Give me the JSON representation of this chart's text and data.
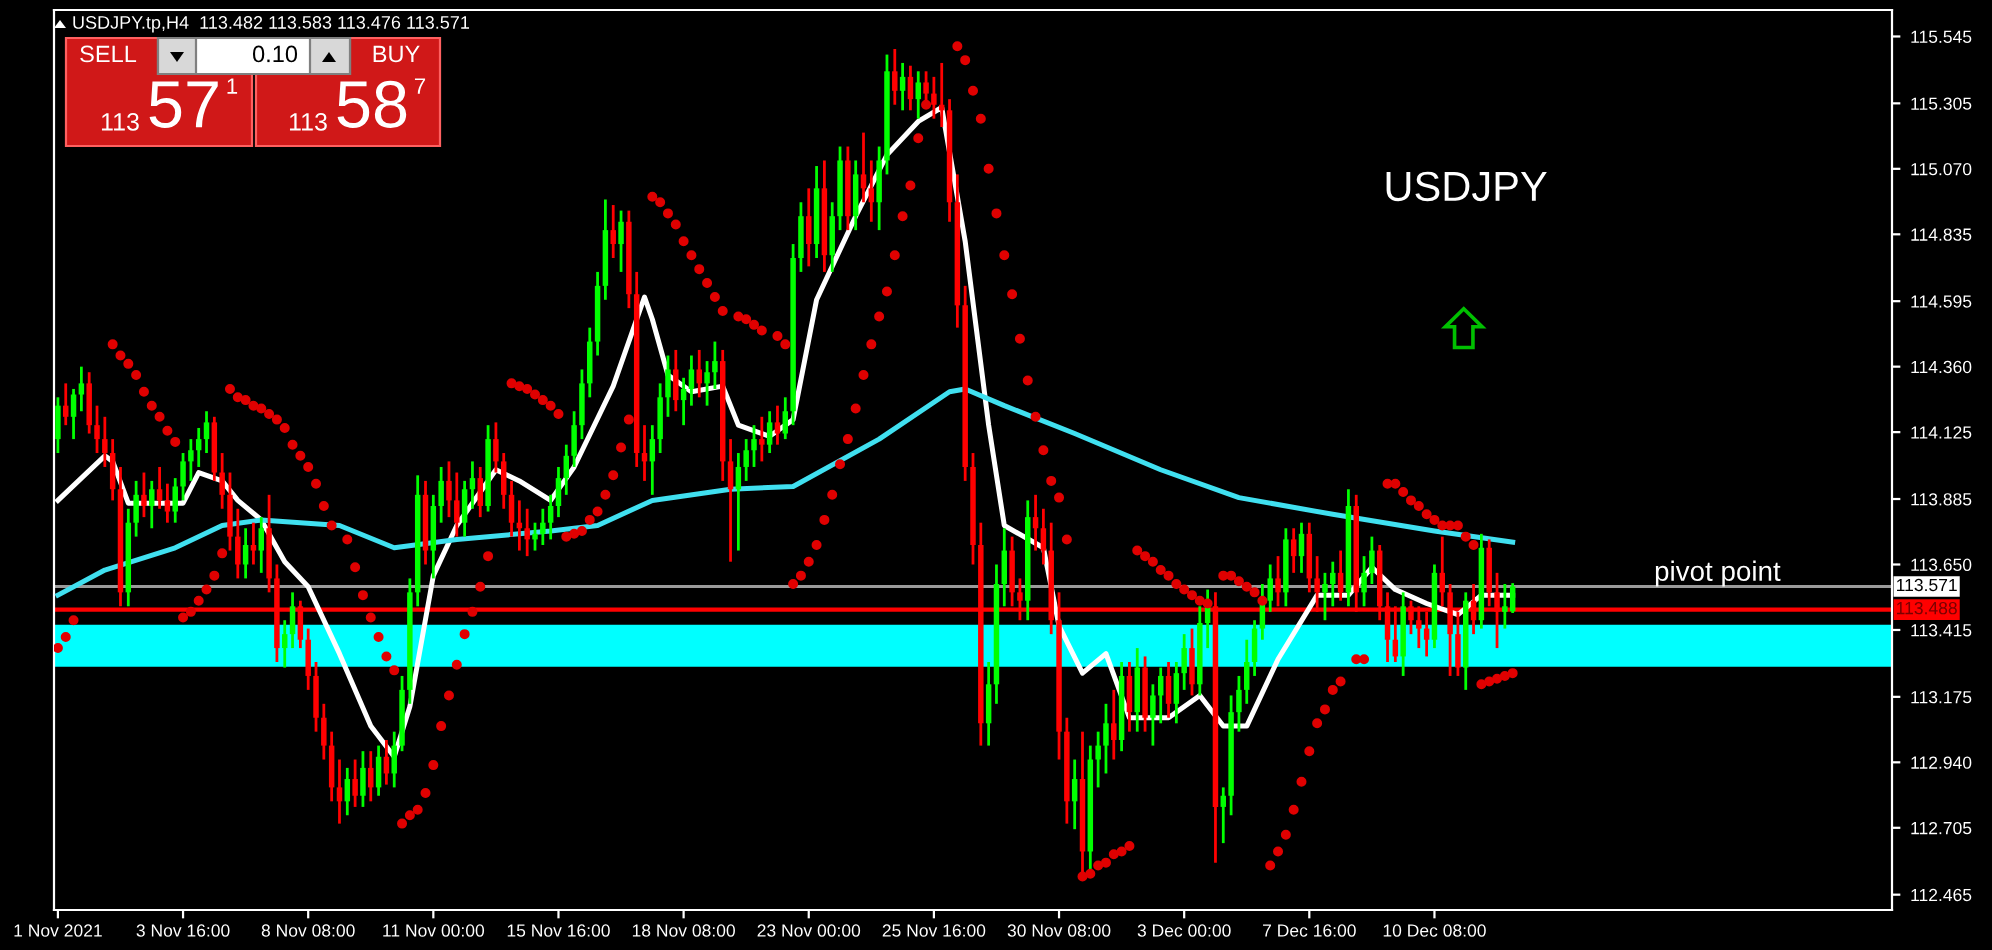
{
  "chart_data": {
    "type": "candlestick",
    "title": "USDJPY.tp,H4  113.482 113.583 113.476 113.571",
    "categories": [
      "1 Nov 2021",
      null,
      null,
      null,
      null,
      null,
      null,
      null,
      null,
      null,
      null,
      null,
      null,
      null,
      null,
      null,
      "3 Nov 16:00",
      null,
      null,
      null,
      null,
      null,
      null,
      null,
      null,
      null,
      null,
      null,
      null,
      null,
      null,
      null,
      "8 Nov 08:00",
      null,
      null,
      null,
      null,
      null,
      null,
      null,
      null,
      null,
      null,
      null,
      null,
      null,
      null,
      null,
      "11 Nov 00:00",
      null,
      null,
      null,
      null,
      null,
      null,
      null,
      null,
      null,
      null,
      null,
      null,
      null,
      null,
      null,
      "15 Nov 16:00",
      null,
      null,
      null,
      null,
      null,
      null,
      null,
      null,
      null,
      null,
      null,
      null,
      null,
      null,
      null,
      "18 Nov 08:00",
      null,
      null,
      null,
      null,
      null,
      null,
      null,
      null,
      null,
      null,
      null,
      null,
      null,
      null,
      null,
      "23 Nov 00:00",
      null,
      null,
      null,
      null,
      null,
      null,
      null,
      null,
      null,
      null,
      null,
      null,
      null,
      null,
      null,
      "25 Nov 16:00",
      null,
      null,
      null,
      null,
      null,
      null,
      null,
      null,
      null,
      null,
      null,
      null,
      null,
      null,
      null,
      "30 Nov 08:00",
      null,
      null,
      null,
      null,
      null,
      null,
      null,
      null,
      null,
      null,
      null,
      null,
      null,
      null,
      null,
      "3 Dec 00:00",
      null,
      null,
      null,
      null,
      null,
      null,
      null,
      null,
      null,
      null,
      null,
      null,
      null,
      null,
      null,
      "7 Dec 16:00",
      null,
      null,
      null,
      null,
      null,
      null,
      null,
      null,
      null,
      null,
      null,
      null,
      null,
      null,
      null,
      "10 Dec 08:00",
      null,
      null,
      null,
      null,
      null,
      null,
      null,
      null,
      null,
      null,
      null,
      null,
      null,
      null,
      null,
      null,
      null,
      null,
      null,
      null,
      null,
      null,
      null,
      null,
      null,
      null,
      null,
      null,
      null,
      null,
      null,
      null,
      null,
      null,
      null,
      null,
      null,
      null,
      null,
      null,
      null,
      null,
      null,
      null,
      null,
      null,
      null,
      null,
      null,
      null,
      null,
      null,
      null,
      null,
      null,
      null,
      null,
      null
    ],
    "ohlc": [
      [
        114.1,
        114.25,
        114.05,
        114.22
      ],
      [
        114.22,
        114.3,
        114.15,
        114.18
      ],
      [
        114.18,
        114.28,
        114.1,
        114.26
      ],
      [
        114.26,
        114.36,
        114.2,
        114.3
      ],
      [
        114.3,
        114.34,
        114.12,
        114.15
      ],
      [
        114.15,
        114.22,
        114.05,
        114.1
      ],
      [
        114.1,
        114.18,
        114.0,
        114.05
      ],
      [
        114.05,
        114.1,
        113.88,
        113.92
      ],
      [
        113.92,
        114.0,
        113.5,
        113.55
      ],
      [
        113.55,
        113.85,
        113.5,
        113.8
      ],
      [
        113.8,
        113.95,
        113.75,
        113.9
      ],
      [
        113.9,
        113.98,
        113.82,
        113.86
      ],
      [
        113.86,
        113.95,
        113.78,
        113.92
      ],
      [
        113.92,
        114.0,
        113.85,
        113.88
      ],
      [
        113.88,
        113.94,
        113.8,
        113.84
      ],
      [
        113.84,
        113.96,
        113.8,
        113.93
      ],
      [
        113.93,
        114.05,
        113.88,
        114.02
      ],
      [
        114.02,
        114.1,
        113.95,
        114.06
      ],
      [
        114.06,
        114.14,
        114.0,
        114.1
      ],
      [
        114.1,
        114.2,
        114.05,
        114.16
      ],
      [
        114.16,
        114.18,
        113.95,
        113.98
      ],
      [
        113.98,
        114.05,
        113.85,
        113.9
      ],
      [
        113.9,
        113.98,
        113.7,
        113.75
      ],
      [
        113.75,
        113.85,
        113.6,
        113.65
      ],
      [
        113.65,
        113.78,
        113.6,
        113.72
      ],
      [
        113.72,
        113.8,
        113.65,
        113.7
      ],
      [
        113.7,
        113.82,
        113.62,
        113.78
      ],
      [
        113.78,
        113.9,
        113.55,
        113.6
      ],
      [
        113.6,
        113.65,
        113.3,
        113.35
      ],
      [
        113.35,
        113.45,
        113.28,
        113.4
      ],
      [
        113.4,
        113.55,
        113.35,
        113.5
      ],
      [
        113.5,
        113.52,
        113.35,
        113.38
      ],
      [
        113.38,
        113.42,
        113.2,
        113.25
      ],
      [
        113.25,
        113.3,
        113.05,
        113.1
      ],
      [
        113.1,
        113.15,
        112.95,
        113.0
      ],
      [
        113.0,
        113.05,
        112.8,
        112.85
      ],
      [
        112.85,
        112.95,
        112.72,
        112.8
      ],
      [
        112.8,
        112.92,
        112.75,
        112.88
      ],
      [
        112.88,
        112.95,
        112.78,
        112.82
      ],
      [
        112.82,
        112.98,
        112.78,
        112.92
      ],
      [
        112.92,
        112.98,
        112.8,
        112.85
      ],
      [
        112.85,
        113.0,
        112.82,
        112.96
      ],
      [
        112.96,
        113.02,
        112.86,
        112.9
      ],
      [
        112.9,
        113.05,
        112.85,
        113.0
      ],
      [
        113.0,
        113.25,
        112.98,
        113.2
      ],
      [
        113.2,
        113.6,
        113.15,
        113.55
      ],
      [
        113.55,
        113.97,
        113.5,
        113.9
      ],
      [
        113.9,
        113.95,
        113.65,
        113.7
      ],
      [
        113.7,
        113.9,
        113.6,
        113.86
      ],
      [
        113.86,
        114.0,
        113.8,
        113.95
      ],
      [
        113.95,
        114.02,
        113.82,
        113.88
      ],
      [
        113.88,
        113.98,
        113.75,
        113.8
      ],
      [
        113.8,
        113.95,
        113.75,
        113.92
      ],
      [
        113.92,
        114.02,
        113.85,
        113.96
      ],
      [
        113.96,
        114.0,
        113.82,
        113.86
      ],
      [
        113.86,
        114.15,
        113.84,
        114.1
      ],
      [
        114.1,
        114.16,
        113.98,
        114.02
      ],
      [
        114.02,
        114.05,
        113.85,
        113.9
      ],
      [
        113.9,
        113.95,
        113.75,
        113.8
      ],
      [
        113.8,
        113.88,
        113.7,
        113.78
      ],
      [
        113.78,
        113.85,
        113.68,
        113.74
      ],
      [
        113.74,
        113.8,
        113.7,
        113.76
      ],
      [
        113.76,
        113.85,
        113.72,
        113.8
      ],
      [
        113.8,
        113.9,
        113.74,
        113.86
      ],
      [
        113.86,
        114.0,
        113.82,
        113.96
      ],
      [
        113.96,
        114.08,
        113.9,
        114.04
      ],
      [
        114.04,
        114.2,
        114.0,
        114.15
      ],
      [
        114.15,
        114.35,
        114.1,
        114.3
      ],
      [
        114.3,
        114.5,
        114.25,
        114.45
      ],
      [
        114.45,
        114.7,
        114.4,
        114.65
      ],
      [
        114.65,
        114.96,
        114.6,
        114.85
      ],
      [
        114.85,
        114.94,
        114.75,
        114.8
      ],
      [
        114.8,
        114.92,
        114.7,
        114.88
      ],
      [
        114.88,
        114.92,
        114.57,
        114.62
      ],
      [
        114.62,
        114.7,
        114.0,
        114.05
      ],
      [
        114.05,
        114.15,
        113.95,
        114.02
      ],
      [
        114.02,
        114.15,
        113.9,
        114.1
      ],
      [
        114.1,
        114.3,
        114.05,
        114.25
      ],
      [
        114.25,
        114.4,
        114.18,
        114.35
      ],
      [
        114.35,
        114.42,
        114.2,
        114.24
      ],
      [
        114.24,
        114.32,
        114.15,
        114.28
      ],
      [
        114.28,
        114.4,
        114.22,
        114.35
      ],
      [
        114.35,
        114.42,
        114.25,
        114.3
      ],
      [
        114.3,
        114.38,
        114.22,
        114.34
      ],
      [
        114.34,
        114.45,
        114.28,
        114.38
      ],
      [
        114.38,
        114.42,
        113.95,
        114.02
      ],
      [
        114.02,
        114.1,
        113.66,
        113.92
      ],
      [
        113.92,
        114.05,
        113.7,
        114.0
      ],
      [
        114.0,
        114.1,
        113.95,
        114.06
      ],
      [
        114.06,
        114.15,
        114.0,
        114.1
      ],
      [
        114.1,
        114.18,
        114.02,
        114.08
      ],
      [
        114.08,
        114.2,
        114.05,
        114.16
      ],
      [
        114.16,
        114.22,
        114.08,
        114.12
      ],
      [
        114.12,
        114.25,
        114.1,
        114.2
      ],
      [
        114.2,
        114.8,
        114.15,
        114.75
      ],
      [
        114.75,
        114.95,
        114.7,
        114.9
      ],
      [
        114.9,
        115.0,
        114.72,
        114.8
      ],
      [
        114.8,
        115.08,
        114.75,
        115.0
      ],
      [
        115.0,
        115.1,
        114.7,
        114.76
      ],
      [
        114.76,
        114.95,
        114.7,
        114.9
      ],
      [
        114.9,
        115.15,
        114.85,
        115.1
      ],
      [
        115.1,
        115.15,
        114.85,
        114.9
      ],
      [
        114.9,
        115.1,
        114.85,
        115.05
      ],
      [
        115.05,
        115.2,
        114.95,
        115.0
      ],
      [
        115.0,
        115.1,
        114.88,
        114.95
      ],
      [
        114.95,
        115.15,
        114.85,
        115.1
      ],
      [
        115.1,
        115.48,
        115.05,
        115.42
      ],
      [
        115.42,
        115.5,
        115.3,
        115.35
      ],
      [
        115.35,
        115.45,
        115.28,
        115.4
      ],
      [
        115.4,
        115.44,
        115.28,
        115.32
      ],
      [
        115.32,
        115.42,
        115.25,
        115.38
      ],
      [
        115.38,
        115.42,
        115.3,
        115.34
      ],
      [
        115.34,
        115.4,
        115.25,
        115.3
      ],
      [
        115.3,
        115.45,
        115.22,
        115.28
      ],
      [
        115.28,
        115.32,
        114.88,
        114.95
      ],
      [
        114.95,
        115.05,
        114.5,
        114.58
      ],
      [
        114.58,
        114.65,
        113.95,
        114.0
      ],
      [
        114.0,
        114.05,
        113.65,
        113.72
      ],
      [
        113.72,
        113.8,
        113.0,
        113.08
      ],
      [
        113.08,
        113.3,
        113.0,
        113.22
      ],
      [
        113.22,
        113.65,
        113.15,
        113.58
      ],
      [
        113.58,
        113.78,
        113.5,
        113.7
      ],
      [
        113.7,
        113.75,
        113.5,
        113.55
      ],
      [
        113.55,
        113.6,
        113.45,
        113.52
      ],
      [
        113.52,
        113.88,
        113.45,
        113.82
      ],
      [
        113.82,
        113.9,
        113.7,
        113.78
      ],
      [
        113.78,
        113.85,
        113.65,
        113.7
      ],
      [
        113.7,
        113.8,
        113.4,
        113.45
      ],
      [
        113.45,
        113.55,
        112.95,
        113.05
      ],
      [
        113.05,
        113.1,
        112.72,
        112.8
      ],
      [
        112.8,
        112.95,
        112.7,
        112.88
      ],
      [
        112.88,
        113.05,
        112.54,
        112.62
      ],
      [
        112.62,
        113.0,
        112.55,
        112.95
      ],
      [
        112.95,
        113.05,
        112.85,
        113.0
      ],
      [
        113.0,
        113.15,
        112.9,
        113.08
      ],
      [
        113.08,
        113.2,
        112.95,
        113.02
      ],
      [
        113.02,
        113.3,
        112.98,
        113.25
      ],
      [
        113.25,
        113.3,
        113.05,
        113.12
      ],
      [
        113.12,
        113.35,
        113.05,
        113.28
      ],
      [
        113.28,
        113.32,
        113.05,
        113.1
      ],
      [
        113.1,
        113.22,
        113.0,
        113.18
      ],
      [
        113.18,
        113.28,
        113.08,
        113.25
      ],
      [
        113.25,
        113.3,
        113.1,
        113.15
      ],
      [
        113.15,
        113.3,
        113.08,
        113.26
      ],
      [
        113.26,
        113.4,
        113.2,
        113.35
      ],
      [
        113.35,
        113.42,
        113.18,
        113.22
      ],
      [
        113.22,
        113.5,
        113.18,
        113.44
      ],
      [
        113.44,
        113.56,
        113.35,
        113.5
      ],
      [
        113.5,
        113.55,
        112.58,
        112.78
      ],
      [
        112.78,
        112.85,
        112.65,
        112.82
      ],
      [
        112.82,
        113.18,
        112.75,
        113.12
      ],
      [
        113.12,
        113.25,
        113.05,
        113.2
      ],
      [
        113.2,
        113.38,
        113.15,
        113.3
      ],
      [
        113.3,
        113.45,
        113.25,
        113.42
      ],
      [
        113.42,
        113.58,
        113.38,
        113.52
      ],
      [
        113.52,
        113.65,
        113.48,
        113.6
      ],
      [
        113.6,
        113.68,
        113.5,
        113.55
      ],
      [
        113.55,
        113.78,
        113.5,
        113.74
      ],
      [
        113.74,
        113.78,
        113.62,
        113.68
      ],
      [
        113.68,
        113.8,
        113.62,
        113.76
      ],
      [
        113.76,
        113.8,
        113.55,
        113.6
      ],
      [
        113.6,
        113.68,
        113.48,
        113.55
      ],
      [
        113.55,
        113.62,
        113.45,
        113.58
      ],
      [
        113.58,
        113.66,
        113.5,
        113.62
      ],
      [
        113.62,
        113.7,
        113.52,
        113.55
      ],
      [
        113.55,
        113.92,
        113.5,
        113.86
      ],
      [
        113.86,
        113.9,
        113.48,
        113.55
      ],
      [
        113.55,
        113.68,
        113.5,
        113.62
      ],
      [
        113.62,
        113.75,
        113.58,
        113.7
      ],
      [
        113.7,
        113.72,
        113.45,
        113.5
      ],
      [
        113.5,
        113.55,
        113.3,
        113.38
      ],
      [
        113.38,
        113.5,
        113.3,
        113.32
      ],
      [
        113.32,
        113.55,
        113.25,
        113.5
      ],
      [
        113.5,
        113.52,
        113.4,
        113.45
      ],
      [
        113.45,
        113.5,
        113.35,
        113.42
      ],
      [
        113.42,
        113.48,
        113.32,
        113.38
      ],
      [
        113.38,
        113.65,
        113.35,
        113.62
      ],
      [
        113.62,
        113.75,
        113.5,
        113.55
      ],
      [
        113.55,
        113.58,
        113.25,
        113.4
      ],
      [
        113.4,
        113.48,
        113.25,
        113.28
      ],
      [
        113.28,
        113.55,
        113.2,
        113.52
      ],
      [
        113.52,
        113.58,
        113.4,
        113.45
      ],
      [
        113.45,
        113.76,
        113.42,
        113.71
      ],
      [
        113.71,
        113.74,
        113.5,
        113.55
      ],
      [
        113.55,
        113.62,
        113.35,
        113.48
      ],
      [
        113.48,
        113.58,
        113.42,
        113.5
      ],
      [
        113.482,
        113.583,
        113.476,
        113.571
      ],
      null,
      null,
      null,
      null,
      null,
      null,
      null,
      null,
      null,
      null,
      null,
      null,
      null,
      null,
      null,
      null,
      null,
      null,
      null,
      null,
      null,
      null,
      null,
      null,
      null,
      null,
      null,
      null,
      null,
      null,
      null,
      null,
      null,
      null,
      null,
      null,
      null,
      null,
      null,
      null,
      null,
      null,
      null,
      null,
      null,
      null,
      null,
      null
    ],
    "colors": [
      "#00ff00",
      "#ff0000",
      "#00ff00",
      "#00ff00",
      "#ff0000",
      "#ff0000",
      "#ff0000",
      "#ff0000",
      "#ff0000",
      "#00ff00",
      "#00ff00",
      "#ff0000",
      "#00ff00",
      "#ff0000",
      "#ff0000",
      "#00ff00",
      "#00ff00",
      "#00ff00",
      "#00ff00",
      "#00ff00",
      "#ff0000",
      "#ff0000",
      "#ff0000",
      "#ff0000",
      "#00ff00",
      "#ff0000",
      "#00ff00",
      "#ff0000",
      "#ff0000",
      "#00ff00",
      "#00ff00",
      "#ff0000",
      "#ff0000",
      "#ff0000",
      "#ff0000",
      "#ff0000",
      "#ff0000",
      "#00ff00",
      "#ff0000",
      "#00ff00",
      "#ff0000",
      "#00ff00",
      "#ff0000",
      "#00ff00",
      "#00ff00",
      "#00ff00",
      "#00ff00",
      "#ff0000",
      "#00ff00",
      "#00ff00",
      "#ff0000",
      "#ff0000",
      "#00ff00",
      "#00ff00",
      "#ff0000",
      "#00ff00",
      "#ff0000",
      "#ff0000",
      "#ff0000",
      "#ff0000",
      "#ff0000",
      "#00ff00",
      "#00ff00",
      "#00ff00",
      "#00ff00",
      "#00ff00",
      "#00ff00",
      "#00ff00",
      "#00ff00",
      "#00ff00",
      "#00ff00",
      "#ff0000",
      "#00ff00",
      "#ff0000",
      "#ff0000",
      "#ff0000",
      "#00ff00",
      "#00ff00",
      "#00ff00",
      "#ff0000",
      "#00ff00",
      "#00ff00",
      "#ff0000",
      "#00ff00",
      "#00ff00",
      "#ff0000",
      "#ff0000",
      "#00ff00",
      "#00ff00",
      "#00ff00",
      "#ff0000",
      "#00ff00",
      "#ff0000",
      "#00ff00",
      "#00ff00",
      "#00ff00",
      "#ff0000",
      "#00ff00",
      "#ff0000",
      "#00ff00",
      "#00ff00",
      "#ff0000",
      "#00ff00",
      "#ff0000",
      "#ff0000",
      "#00ff00",
      "#00ff00",
      "#ff0000",
      "#00ff00",
      "#ff0000",
      "#00ff00",
      "#ff0000",
      "#ff0000",
      "#ff0000",
      "#ff0000",
      "#ff0000",
      "#ff0000",
      "#ff0000",
      "#ff0000",
      "#00ff00",
      "#00ff00",
      "#00ff00",
      "#ff0000",
      "#ff0000",
      "#00ff00",
      "#ff0000",
      "#ff0000",
      "#ff0000",
      "#ff0000",
      "#ff0000",
      "#00ff00",
      "#ff0000",
      "#00ff00",
      "#00ff00",
      "#00ff00",
      "#ff0000",
      "#00ff00",
      "#ff0000",
      "#00ff00",
      "#ff0000",
      "#00ff00",
      "#00ff00",
      "#ff0000",
      "#00ff00",
      "#00ff00",
      "#ff0000",
      "#00ff00",
      "#00ff00",
      "#ff0000",
      "#00ff00",
      "#00ff00",
      "#00ff00",
      "#00ff00",
      "#00ff00",
      "#00ff00",
      "#00ff00",
      "#ff0000",
      "#00ff00",
      "#ff0000",
      "#00ff00",
      "#ff0000",
      "#ff0000",
      "#00ff00",
      "#00ff00",
      "#ff0000",
      "#00ff00",
      "#ff0000",
      "#00ff00",
      "#00ff00",
      "#ff0000",
      "#ff0000",
      "#ff0000",
      "#00ff00",
      "#ff0000",
      "#ff0000",
      "#ff0000",
      "#00ff00",
      "#ff0000",
      "#ff0000",
      "#ff0000",
      "#00ff00",
      "#ff0000",
      "#00ff00",
      "#ff0000",
      "#ff0000",
      "#00ff00",
      "#00ff00",
      null,
      null,
      null,
      null,
      null,
      null,
      null,
      null,
      null,
      null,
      null,
      null,
      null,
      null,
      null,
      null,
      null,
      null,
      null,
      null,
      null,
      null,
      null,
      null,
      null,
      null,
      null,
      null,
      null,
      null,
      null,
      null,
      null,
      null,
      null,
      null,
      null,
      null,
      null,
      null,
      null,
      null,
      null,
      null,
      null,
      null,
      null,
      null
    ],
    "series": [
      {
        "type": "line",
        "color": "#ffffff",
        "values": [
          113.88,
          null,
          null,
          null,
          null,
          null,
          114.04,
          114.02,
          null,
          113.87,
          null,
          null,
          null,
          null,
          null,
          null,
          113.87,
          null,
          113.98,
          null,
          null,
          113.95,
          null,
          113.88,
          null,
          null,
          113.81,
          null,
          null,
          113.66,
          null,
          null,
          113.57,
          null,
          null,
          null,
          113.33,
          null,
          null,
          null,
          113.07,
          null,
          null,
          112.96,
          null,
          113.14,
          null,
          null,
          113.61,
          null,
          null,
          113.79,
          null,
          null,
          null,
          null,
          113.99,
          null,
          null,
          113.95,
          null,
          null,
          null,
          113.88,
          null,
          null,
          114.0,
          null,
          null,
          null,
          null,
          114.29,
          null,
          null,
          null,
          114.61,
          114.53,
          null,
          114.33,
          null,
          null,
          114.27,
          null,
          null,
          null,
          114.29,
          null,
          114.15,
          null,
          null,
          null,
          114.11,
          null,
          null,
          114.17,
          null,
          null,
          114.6,
          null,
          null,
          null,
          null,
          114.9,
          null,
          null,
          null,
          115.12,
          null,
          null,
          null,
          115.24,
          null,
          null,
          115.29,
          null,
          null,
          114.81,
          null,
          null,
          114.15,
          null,
          113.79,
          null,
          null,
          null,
          null,
          113.71,
          null,
          113.43,
          null,
          null,
          113.26,
          null,
          null,
          113.33,
          null,
          null,
          113.1,
          null,
          null,
          null,
          null,
          113.1,
          null,
          null,
          null,
          113.18,
          null,
          null,
          113.07,
          null,
          null,
          113.07,
          null,
          null,
          null,
          113.31,
          null,
          null,
          null,
          null,
          113.54,
          null,
          null,
          null,
          113.54,
          null,
          null,
          113.64,
          null,
          null,
          113.56,
          null,
          null,
          null,
          113.51,
          null,
          null,
          null,
          113.47,
          null,
          null,
          113.54,
          null,
          null,
          null,
          113.54,
          null,
          null,
          null,
          null,
          null,
          null,
          null,
          null,
          null,
          null,
          null,
          null,
          null,
          null,
          null,
          null,
          null,
          null,
          null,
          null,
          null,
          null,
          null,
          null,
          null,
          null,
          null,
          null,
          null,
          null,
          null,
          null,
          null,
          null,
          null,
          null,
          null,
          null,
          null,
          null,
          null,
          null,
          null,
          null,
          null,
          null,
          null,
          null
        ]
      },
      {
        "type": "line",
        "color": "#40e0f0",
        "values": [
          113.54,
          null,
          null,
          null,
          null,
          null,
          113.63,
          null,
          null,
          null,
          null,
          null,
          null,
          null,
          null,
          113.71,
          null,
          null,
          null,
          null,
          null,
          113.79,
          null,
          null,
          null,
          null,
          113.81,
          null,
          null,
          null,
          null,
          null,
          null,
          null,
          null,
          null,
          113.79,
          null,
          null,
          null,
          null,
          null,
          null,
          113.71,
          null,
          null,
          null,
          null,
          null,
          null,
          null,
          113.74,
          null,
          null,
          null,
          null,
          null,
          null,
          null,
          null,
          null,
          null,
          null,
          113.77,
          null,
          null,
          null,
          null,
          null,
          113.79,
          null,
          null,
          null,
          null,
          null,
          null,
          113.88,
          null,
          null,
          null,
          null,
          null,
          null,
          null,
          null,
          null,
          113.92,
          null,
          null,
          null,
          null,
          null,
          null,
          null,
          113.93,
          null,
          null,
          null,
          null,
          null,
          null,
          null,
          null,
          null,
          null,
          114.1,
          null,
          null,
          null,
          null,
          null,
          null,
          null,
          null,
          114.27,
          null,
          114.28,
          null,
          null,
          null,
          null,
          114.22,
          null,
          null,
          null,
          null,
          null,
          null,
          null,
          null,
          114.12,
          null,
          null,
          null,
          null,
          null,
          null,
          null,
          null,
          null,
          null,
          113.99,
          null,
          null,
          null,
          null,
          null,
          null,
          null,
          null,
          null,
          113.89,
          null,
          null,
          null,
          null,
          null,
          null,
          null,
          null,
          null,
          null,
          null,
          113.83,
          null,
          null,
          null,
          null,
          null,
          null,
          null,
          null,
          null,
          null,
          null,
          null,
          113.77,
          null,
          null,
          null,
          null,
          null,
          null,
          null,
          null,
          null,
          113.73,
          null,
          null,
          null,
          null,
          null,
          null,
          null,
          null,
          null,
          null,
          null,
          null,
          null,
          null,
          null,
          null,
          null,
          null,
          null,
          null,
          null,
          null,
          null,
          null,
          null,
          null,
          null,
          null,
          null,
          null,
          null,
          null,
          null,
          null,
          null,
          null,
          null,
          null,
          null,
          null,
          null,
          null,
          null,
          null,
          null,
          null,
          null,
          null
        ]
      },
      {
        "type": "scatter",
        "color": "#e00000",
        "marker": "circle",
        "values": [
          113.35,
          113.39,
          113.45,
          null,
          null,
          null,
          null,
          114.44,
          114.4,
          114.37,
          114.33,
          114.27,
          114.22,
          114.18,
          114.13,
          114.09,
          113.46,
          113.48,
          113.52,
          113.56,
          113.61,
          113.69,
          114.28,
          114.25,
          114.24,
          114.22,
          114.21,
          114.19,
          114.17,
          114.14,
          114.08,
          114.04,
          114.0,
          113.94,
          113.86,
          113.79,
          null,
          113.74,
          113.64,
          113.54,
          113.46,
          113.39,
          113.32,
          113.27,
          112.72,
          112.75,
          112.77,
          112.83,
          112.93,
          113.07,
          113.18,
          113.29,
          113.4,
          113.48,
          113.57,
          113.68,
          null,
          null,
          114.3,
          114.29,
          114.28,
          114.26,
          114.24,
          114.22,
          114.19,
          113.75,
          113.76,
          113.77,
          113.81,
          113.84,
          113.9,
          113.97,
          114.07,
          114.17,
          null,
          null,
          114.97,
          114.95,
          114.91,
          114.87,
          114.81,
          114.76,
          114.71,
          114.66,
          114.61,
          114.56,
          null,
          114.54,
          114.53,
          114.51,
          114.49,
          null,
          114.47,
          114.44,
          113.58,
          113.61,
          113.66,
          113.72,
          113.81,
          113.9,
          114.01,
          114.1,
          114.21,
          114.33,
          114.44,
          114.54,
          114.63,
          114.76,
          114.9,
          115.01,
          115.18,
          115.3,
          null,
          null,
          null,
          115.51,
          115.46,
          115.35,
          115.25,
          115.07,
          114.91,
          114.76,
          114.62,
          114.46,
          114.31,
          114.18,
          114.06,
          113.95,
          113.89,
          113.74,
          null,
          112.53,
          112.54,
          112.57,
          112.58,
          112.61,
          112.62,
          112.64,
          113.7,
          113.68,
          113.66,
          113.63,
          113.61,
          113.58,
          113.56,
          113.54,
          113.52,
          113.51,
          null,
          113.61,
          113.61,
          113.59,
          113.57,
          113.55,
          113.52,
          112.57,
          112.62,
          112.68,
          112.77,
          112.87,
          112.98,
          113.08,
          113.13,
          113.2,
          113.23,
          null,
          113.31,
          113.31,
          null,
          null,
          113.94,
          113.94,
          113.91,
          113.88,
          113.86,
          113.83,
          113.81,
          113.79,
          113.79,
          113.79,
          113.75,
          113.72,
          113.22,
          113.23,
          113.24,
          113.25,
          113.26,
          null,
          null,
          null,
          null,
          null,
          null,
          null,
          null,
          null,
          null,
          null,
          null,
          null,
          null,
          null,
          null,
          null,
          null,
          null,
          null,
          null,
          null,
          null,
          null,
          null,
          null,
          null,
          null,
          null,
          null,
          null,
          null,
          null,
          null,
          null,
          null,
          null,
          null,
          null,
          null,
          null,
          null,
          null,
          null,
          null,
          null,
          null,
          null
        ]
      }
    ],
    "ylim": [
      112.41,
      115.64
    ],
    "yticks": [
      {
        "value": 115.545,
        "label": "115.545"
      },
      {
        "value": 115.305,
        "label": "115.305"
      },
      {
        "value": 115.07,
        "label": "115.070"
      },
      {
        "value": 114.835,
        "label": "114.835"
      },
      {
        "value": 114.595,
        "label": "114.595"
      },
      {
        "value": 114.36,
        "label": "114.360"
      },
      {
        "value": 114.125,
        "label": "114.125"
      },
      {
        "value": 113.885,
        "label": "113.885"
      },
      {
        "value": 113.65,
        "label": "113.650"
      },
      {
        "value": 113.415,
        "label": "113.415"
      },
      {
        "value": 113.175,
        "label": "113.175"
      },
      {
        "value": 112.94,
        "label": "112.940"
      },
      {
        "value": 112.705,
        "label": "112.705"
      },
      {
        "value": 112.465,
        "label": "112.465"
      }
    ],
    "ref_lines": [
      {
        "axis": "y",
        "value": 113.571,
        "label": "pivot point",
        "color": "#9a9a9a"
      },
      {
        "axis": "y",
        "value": 113.488,
        "color": "#ff0000"
      }
    ],
    "bands": [
      {
        "axis": "y",
        "from": 113.283,
        "to": 113.434,
        "color": "#00ffff"
      }
    ],
    "annotations": [
      "USDJPY",
      "SELL",
      "0.10",
      "BUY",
      "113",
      "57",
      "1",
      "113",
      "58",
      "7",
      {
        "text": "113.571",
        "y": 113.571
      },
      {
        "text": "113.488",
        "y": 113.488
      }
    ],
    "grid": false,
    "legend": false
  }
}
